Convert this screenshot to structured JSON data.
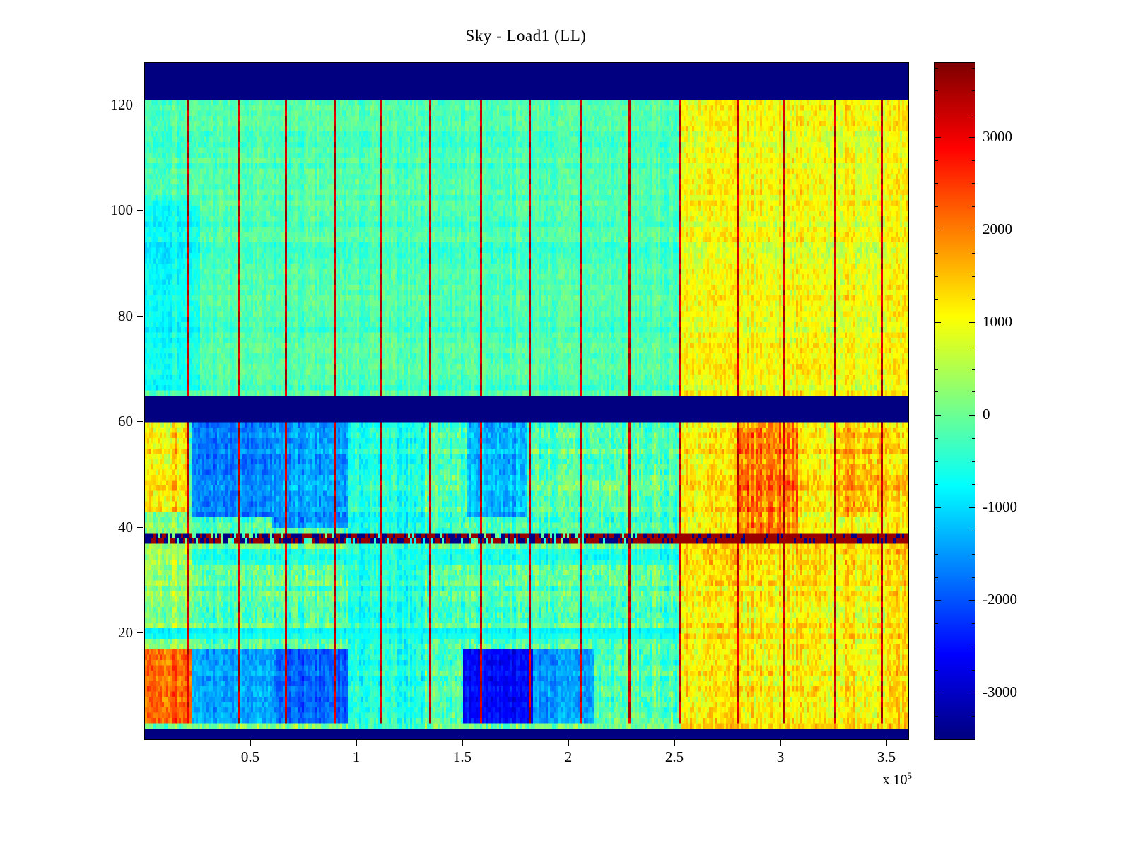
{
  "figure": {
    "background": "#ffffff"
  },
  "chart_data": {
    "type": "heatmap",
    "title": "Sky - Load1 (LL)",
    "colormap": "jet",
    "x_range": [
      0,
      360000
    ],
    "y_range": [
      0,
      128
    ],
    "x_axis_multiplier": {
      "text": "x 10",
      "exp": "5"
    },
    "x_ticks": [
      {
        "value": 50000,
        "label": "0.5"
      },
      {
        "value": 100000,
        "label": "1"
      },
      {
        "value": 150000,
        "label": "1.5"
      },
      {
        "value": 200000,
        "label": "2"
      },
      {
        "value": 250000,
        "label": "2.5"
      },
      {
        "value": 300000,
        "label": "3"
      },
      {
        "value": 350000,
        "label": "3.5"
      }
    ],
    "y_ticks": [
      {
        "value": 20,
        "label": "20"
      },
      {
        "value": 40,
        "label": "40"
      },
      {
        "value": 60,
        "label": "60"
      },
      {
        "value": 80,
        "label": "80"
      },
      {
        "value": 100,
        "label": "100"
      },
      {
        "value": 120,
        "label": "120"
      }
    ],
    "color_axis": {
      "min": -3500,
      "max": 3800
    },
    "colorbar_ticks": [
      {
        "value": 3000,
        "label": "3000"
      },
      {
        "value": 2000,
        "label": "2000"
      },
      {
        "value": 1000,
        "label": "1000"
      },
      {
        "value": 0,
        "label": "0"
      },
      {
        "value": -1000,
        "label": "-1000"
      },
      {
        "value": -2000,
        "label": "-2000"
      },
      {
        "value": -3000,
        "label": "-3000"
      }
    ],
    "colorbar_minor_tick_step": 250,
    "grid_resolution": {
      "nx": 360,
      "ny": 128
    },
    "seed": 7,
    "solid_band_value": -3500,
    "solid_bands_y": [
      [
        0,
        2.5
      ],
      [
        60.5,
        65
      ],
      [
        121.5,
        128
      ]
    ],
    "event_line_value": 3300,
    "event_lines_x": [
      20000,
      44000,
      66000,
      89000,
      111000,
      134000,
      158000,
      181000,
      205000,
      228000,
      252000,
      279000,
      301000,
      325000,
      347000
    ],
    "speckle_rows": {
      "y": [
        37,
        39
      ],
      "red_value": 3600,
      "blue_value": -3450,
      "red_fraction_left": 0.45,
      "red_fraction_right": 0.78,
      "split_x": 232000
    },
    "regions": [
      {
        "x": [
          0,
          360000
        ],
        "y": [
          2.5,
          121.5
        ],
        "base": -250,
        "noise": 520
      },
      {
        "x": [
          0,
          26000
        ],
        "y": [
          66,
          102
        ],
        "base": -700,
        "noise": 520
      },
      {
        "x": [
          253000,
          360000
        ],
        "y": [
          65,
          121.5
        ],
        "base": 950,
        "noise": 740
      },
      {
        "x": [
          0,
          360000
        ],
        "y": [
          2.5,
          60.5
        ],
        "base": -150,
        "noise": 900
      },
      {
        "x": [
          0,
          21000
        ],
        "y": [
          43,
          60.5
        ],
        "base": 1250,
        "noise": 900
      },
      {
        "x": [
          0,
          22000
        ],
        "y": [
          17,
          43
        ],
        "base": 350,
        "noise": 800
      },
      {
        "x": [
          0,
          22000
        ],
        "y": [
          3,
          17
        ],
        "base": 2250,
        "noise": 750
      },
      {
        "x": [
          22000,
          60000
        ],
        "y": [
          42,
          60.5
        ],
        "base": -1700,
        "noise": 620
      },
      {
        "x": [
          60000,
          96000
        ],
        "y": [
          40,
          60.5
        ],
        "base": -1450,
        "noise": 700
      },
      {
        "x": [
          22000,
          62000
        ],
        "y": [
          3,
          17
        ],
        "base": -1400,
        "noise": 620
      },
      {
        "x": [
          62000,
          96000
        ],
        "y": [
          3,
          17
        ],
        "base": -1900,
        "noise": 600
      },
      {
        "x": [
          96000,
          132000
        ],
        "y": [
          2.5,
          60.5
        ],
        "base": -550,
        "noise": 700
      },
      {
        "x": [
          150000,
          183000
        ],
        "y": [
          3,
          17
        ],
        "base": -2550,
        "noise": 500
      },
      {
        "x": [
          152000,
          180000
        ],
        "y": [
          42,
          60.5
        ],
        "base": -1250,
        "noise": 650
      },
      {
        "x": [
          183000,
          212000
        ],
        "y": [
          3,
          17
        ],
        "base": -1450,
        "noise": 600
      },
      {
        "x": [
          253000,
          360000
        ],
        "y": [
          2.5,
          60.5
        ],
        "base": 1150,
        "noise": 900
      },
      {
        "x": [
          280000,
          308000
        ],
        "y": [
          38,
          60.5
        ],
        "base": 2050,
        "noise": 1000
      },
      {
        "x": [
          326000,
          350000
        ],
        "y": [
          42,
          60
        ],
        "base": 1650,
        "noise": 950
      },
      {
        "x": [
          0,
          253000
        ],
        "y": [
          19,
          21
        ],
        "base": -750,
        "noise": 420
      },
      {
        "x": [
          22000,
          253000
        ],
        "y": [
          33,
          36
        ],
        "base": -700,
        "noise": 620
      }
    ]
  }
}
